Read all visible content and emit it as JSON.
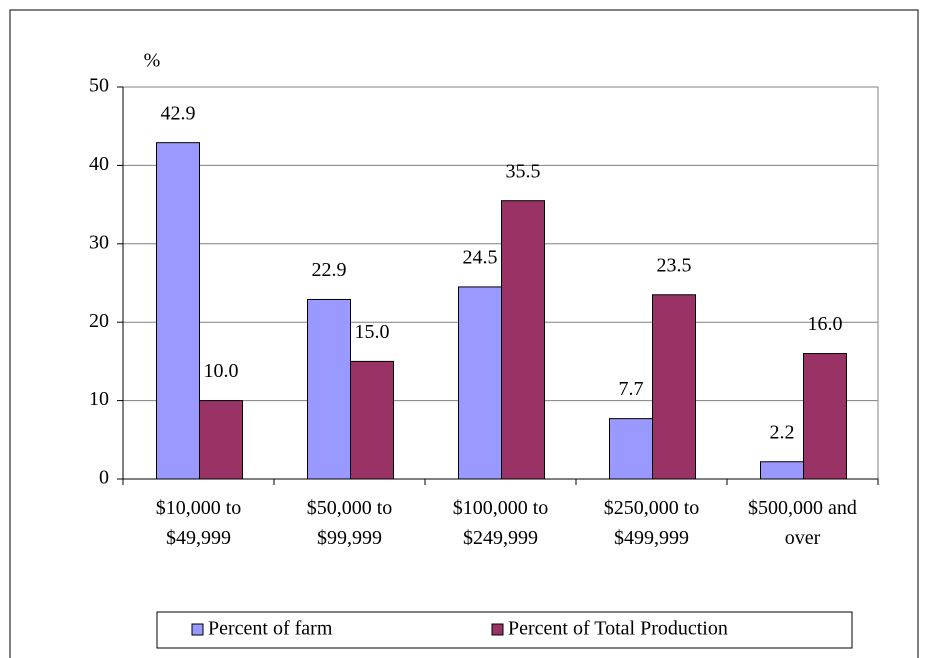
{
  "chart_data": {
    "type": "bar",
    "y_label": "%",
    "categories": [
      "$10,000 to\n$49,999",
      "$50,000 to\n$99,999",
      "$100,000 to\n$249,999",
      "$250,000 to\n$499,999",
      "$500,000  and\nover"
    ],
    "series": [
      {
        "name": "Percent of farm",
        "color": "#9999ff",
        "values": [
          42.9,
          22.9,
          24.5,
          7.7,
          2.2
        ],
        "value_labels": [
          "42.9",
          "22.9",
          "24.5",
          "7.7",
          "2.2"
        ]
      },
      {
        "name": "Percent of Total Production",
        "color": "#993366",
        "values": [
          10.0,
          15.0,
          35.5,
          23.5,
          16.0
        ],
        "value_labels": [
          "10.0",
          "15.0",
          "35.5",
          "23.5",
          "16.0"
        ]
      }
    ],
    "ylim": [
      0,
      50
    ],
    "yticks": [
      0,
      10,
      20,
      30,
      40,
      50
    ],
    "grid": true,
    "legend": "bottom"
  }
}
